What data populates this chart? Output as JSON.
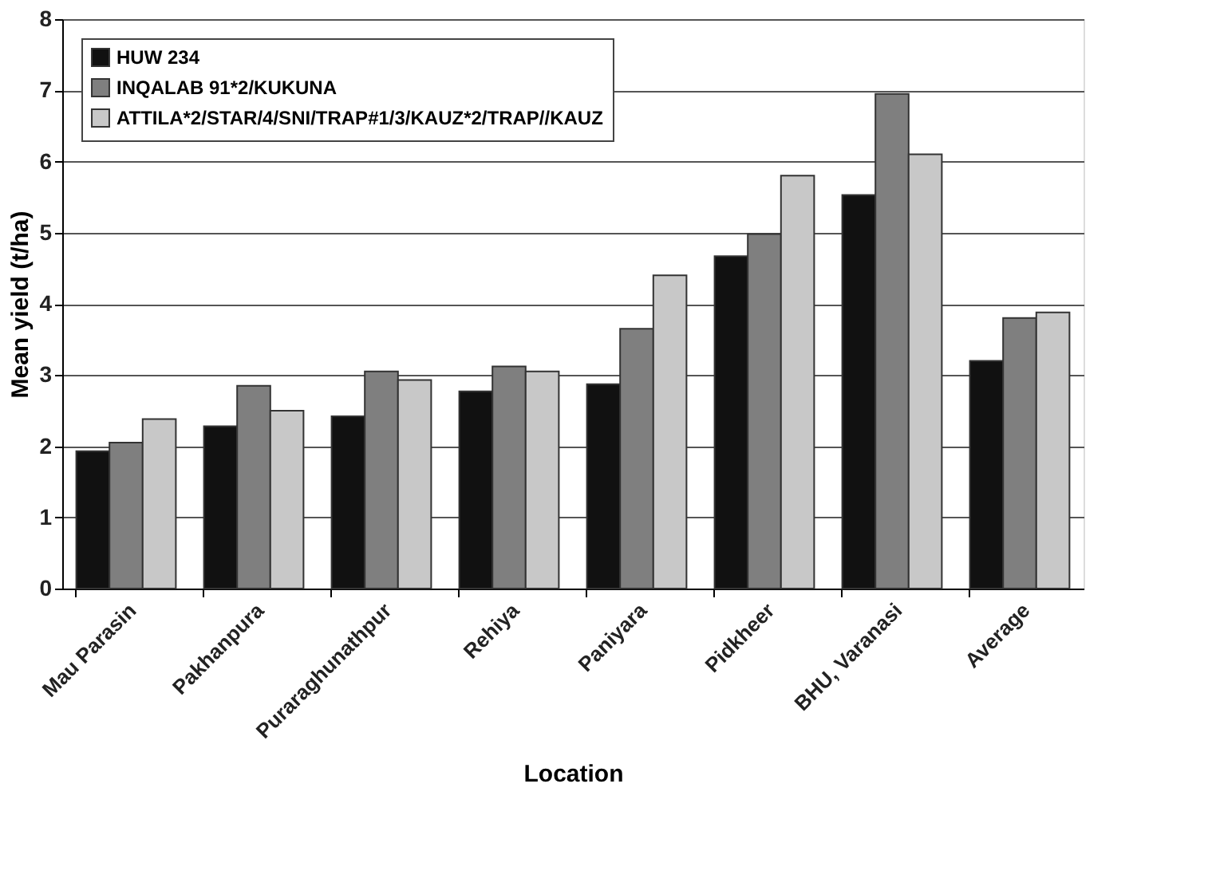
{
  "chart_data": {
    "type": "bar",
    "xlabel": "Location",
    "ylabel": "Mean yield (t/ha)",
    "categories": [
      "Mau Parasin",
      "Pakhanpura",
      "Puraraghunathpur",
      "Rehiya",
      "Paniyara",
      "Pidkheer",
      "BHU, Varanasi",
      "Average"
    ],
    "series": [
      {
        "name": "HUW 234",
        "color": "#111111",
        "values": [
          1.93,
          2.28,
          2.42,
          2.77,
          2.87,
          4.67,
          5.53,
          3.2
        ]
      },
      {
        "name": "INQALAB 91*2/KUKUNA",
        "color": "#7f7f7f",
        "values": [
          2.05,
          2.85,
          3.05,
          3.12,
          3.65,
          4.98,
          6.95,
          3.8
        ]
      },
      {
        "name": "ATTILA*2/STAR/4/SNI/TRAP#1/3/KAUZ*2/TRAP//KAUZ",
        "color": "#c8c8c8",
        "values": [
          2.38,
          2.5,
          2.93,
          3.05,
          4.4,
          5.8,
          6.1,
          3.88
        ]
      }
    ],
    "ylim": [
      0,
      8
    ],
    "yticks": [
      0,
      1,
      2,
      3,
      4,
      5,
      6,
      7,
      8
    ],
    "grid": "y",
    "legend": "top left"
  }
}
